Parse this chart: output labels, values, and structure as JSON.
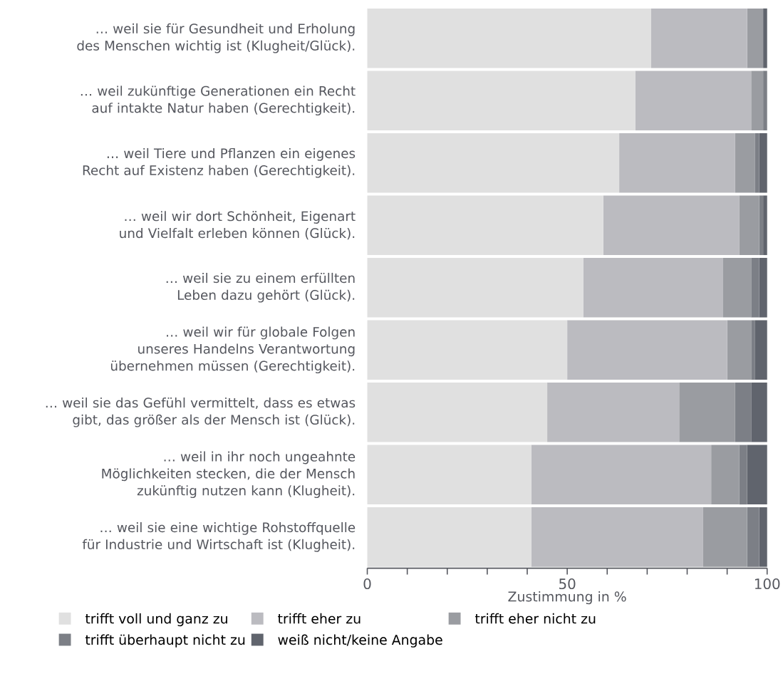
{
  "chart_data": {
    "type": "bar",
    "orientation": "horizontal",
    "stacked": true,
    "xlabel": "Zustimmung in %",
    "categories": [
      "… weil sie für Gesundheit und Erholung des Menschen wichtig ist (Klugheit/Glück).",
      "… weil zukünftige Generationen ein Recht auf intakte Natur haben (Gerechtigkeit).",
      "… weil Tiere und Pflanzen ein eigenes Recht auf Existenz haben (Gerechtigkeit).",
      "… weil wir dort Schönheit, Eigenart und Vielfalt erleben können (Glück).",
      "… weil sie zu einem erfüllten Leben dazu gehört (Glück).",
      "… weil wir für globale Folgen unseres Handelns Verantwortung übernehmen müssen (Gerechtigkeit).",
      "… weil sie das Gefühl vermittelt, dass es etwas gibt, das größer als der Mensch ist (Glück).",
      "… weil in ihr noch ungeahnte Möglichkeiten stecken, die der Mensch zukünftig nutzen kann (Klugheit).",
      "… weil sie eine wichtige Rohstoffquelle für Industrie und Wirtschaft ist (Klugheit)."
    ],
    "series": [
      {
        "name": "trifft voll und ganz zu",
        "color": "#e0e0e0",
        "values": [
          71,
          67,
          63,
          59,
          54,
          50,
          45,
          41,
          41
        ]
      },
      {
        "name": "trifft eher zu",
        "color": "#bbbbc0",
        "values": [
          24,
          29,
          29,
          34,
          35,
          40,
          33,
          45,
          43
        ]
      },
      {
        "name": "trifft eher nicht zu",
        "color": "#9a9ca1",
        "values": [
          4,
          3,
          5,
          5,
          7,
          6,
          14,
          7,
          11
        ]
      },
      {
        "name": "trifft überhaupt nicht zu",
        "color": "#7c7f86",
        "values": [
          0,
          1,
          1,
          1,
          2,
          1,
          4,
          2,
          3
        ]
      },
      {
        "name": "weiß nicht/keine Angabe",
        "color": "#60646d",
        "values": [
          1,
          0,
          2,
          1,
          2,
          3,
          4,
          5,
          2
        ]
      }
    ],
    "xlim": [
      0,
      100
    ],
    "xticks": [
      0,
      {
        "value": 10,
        "label": null
      },
      {
        "value": 20,
        "label": null
      },
      {
        "value": 30,
        "label": null
      },
      {
        "value": 40,
        "label": null
      },
      50,
      {
        "value": 60,
        "label": null
      },
      {
        "value": 70,
        "label": null
      },
      {
        "value": 80,
        "label": null
      },
      {
        "value": 90,
        "label": null
      },
      100
    ],
    "grid": false,
    "legend": "bottom"
  }
}
